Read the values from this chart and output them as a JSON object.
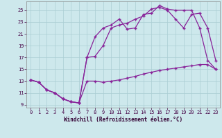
{
  "xlabel": "Windchill (Refroidissement éolien,°C)",
  "xlim": [
    -0.5,
    23.5
  ],
  "ylim": [
    8.5,
    26.5
  ],
  "yticks": [
    9,
    11,
    13,
    15,
    17,
    19,
    21,
    23,
    25
  ],
  "xticks": [
    0,
    1,
    2,
    3,
    4,
    5,
    6,
    7,
    8,
    9,
    10,
    11,
    12,
    13,
    14,
    15,
    16,
    17,
    18,
    19,
    20,
    21,
    22,
    23
  ],
  "bg_color": "#cde8ec",
  "grid_color": "#aacdd3",
  "line_color": "#882299",
  "line1_x": [
    0,
    1,
    2,
    3,
    4,
    5,
    6,
    7,
    8,
    9,
    10,
    11,
    12,
    13,
    14,
    15,
    16,
    17,
    18,
    19,
    20,
    21,
    22,
    23
  ],
  "line1_y": [
    13.2,
    12.8,
    11.5,
    11.0,
    10.0,
    9.5,
    9.3,
    17.0,
    20.5,
    22.0,
    22.5,
    23.5,
    21.8,
    22.0,
    24.3,
    24.5,
    25.8,
    25.2,
    25.0,
    25.0,
    25.0,
    22.0,
    16.5,
    15.0
  ],
  "line2_x": [
    0,
    1,
    2,
    3,
    4,
    5,
    6,
    7,
    8,
    9,
    10,
    11,
    12,
    13,
    14,
    15,
    16,
    17,
    18,
    19,
    20,
    21,
    22,
    23
  ],
  "line2_y": [
    13.2,
    12.8,
    11.5,
    11.0,
    10.0,
    9.5,
    9.3,
    13.0,
    13.0,
    12.8,
    13.0,
    13.2,
    13.5,
    13.8,
    14.2,
    14.5,
    14.8,
    15.0,
    15.2,
    15.4,
    15.6,
    15.8,
    15.8,
    15.0
  ],
  "line3_x": [
    0,
    1,
    2,
    3,
    4,
    5,
    6,
    7,
    8,
    9,
    10,
    11,
    12,
    13,
    14,
    15,
    16,
    17,
    18,
    19,
    20,
    21,
    22,
    23
  ],
  "line3_y": [
    13.2,
    12.8,
    11.5,
    11.0,
    10.0,
    9.5,
    9.3,
    17.0,
    17.2,
    19.0,
    22.0,
    22.5,
    22.8,
    23.5,
    24.0,
    25.2,
    25.5,
    25.0,
    23.5,
    22.0,
    24.3,
    24.5,
    22.0,
    16.5
  ]
}
